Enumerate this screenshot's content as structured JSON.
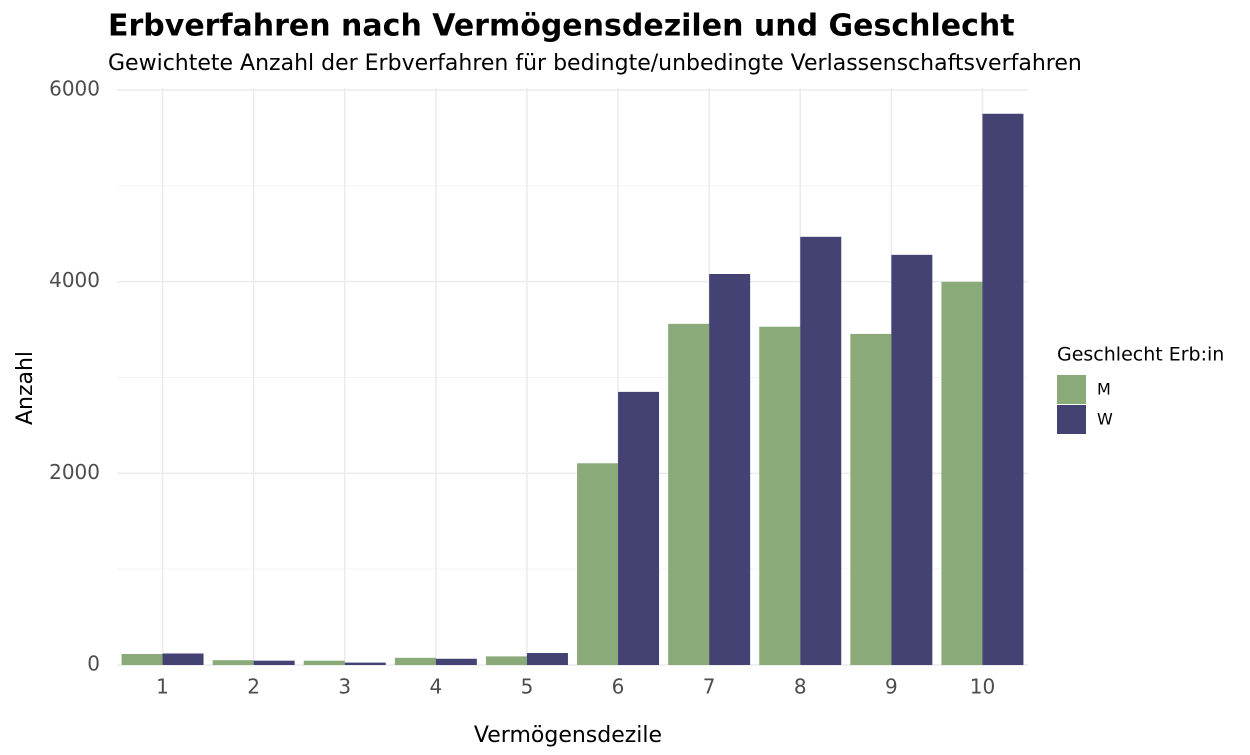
{
  "chart_data": {
    "type": "bar",
    "title": "Erbverfahren nach Vermögensdezilen und Geschlecht",
    "subtitle": "Gewichtete Anzahl der Erbverfahren für bedingte/unbedingte Verlassenschaftsverfahren",
    "x_label": "Vermögensdezile",
    "y_label": "Anzahl",
    "legend_title": "Geschlecht Erb:in",
    "legend_position": "right",
    "grid": true,
    "categories": [
      "1",
      "2",
      "3",
      "4",
      "5",
      "6",
      "7",
      "8",
      "9",
      "10"
    ],
    "series": [
      {
        "name": "M",
        "color": "#8aaa7a",
        "values": [
          115,
          50,
          45,
          75,
          90,
          2105,
          3560,
          3530,
          3455,
          3998
        ]
      },
      {
        "name": "W",
        "color": "#434272",
        "values": [
          120,
          45,
          25,
          65,
          125,
          2850,
          4080,
          4468,
          4280,
          5752
        ]
      }
    ],
    "ylim": [
      0,
      6000
    ],
    "yticks": [
      0,
      2000,
      4000,
      6000
    ]
  }
}
